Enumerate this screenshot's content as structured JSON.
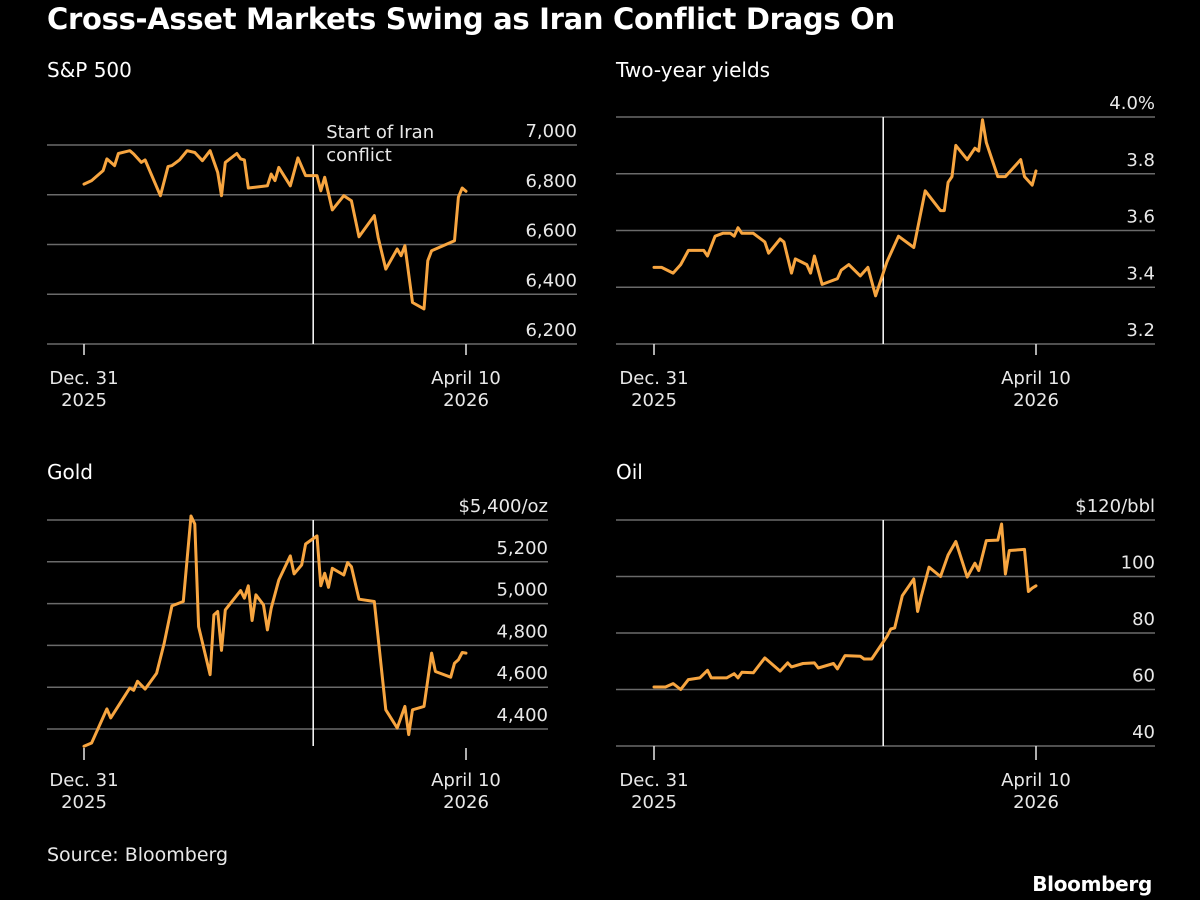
{
  "title": "Cross-Asset Markets Swing as Iran Conflict Drags On",
  "source": "Source: Bloomberg",
  "logo": "Bloomberg",
  "colors": {
    "line": "#f7a540",
    "grid": "#6a6a6a",
    "marker": "#ffffff",
    "background": "#000000"
  },
  "chart_data": [
    {
      "type": "line",
      "title": "S&P 500",
      "annotation": [
        "Start of Iran",
        "conflict"
      ],
      "event_date": "2026-03-01",
      "ylim": [
        6200,
        7000
      ],
      "yticks": [
        7000,
        6800,
        6600,
        6400,
        6200
      ],
      "ytick_labels": [
        "7,000",
        "6,800",
        "6,600",
        "6,400",
        "6,200"
      ],
      "xlim": [
        "2025-12-31",
        "2026-04-10"
      ],
      "xticks": [
        {
          "date": "2025-12-31",
          "label": [
            "Dec. 31",
            "2025"
          ]
        },
        {
          "date": "2026-04-10",
          "label": [
            "April 10",
            "2026"
          ]
        }
      ],
      "grid": true,
      "series": [
        {
          "points": [
            [
              "2025-12-31",
              6843
            ],
            [
              "2026-01-02",
              6857
            ],
            [
              "2026-01-05",
              6897
            ],
            [
              "2026-01-06",
              6944
            ],
            [
              "2026-01-08",
              6917
            ],
            [
              "2026-01-09",
              6966
            ],
            [
              "2026-01-12",
              6977
            ],
            [
              "2026-01-13",
              6964
            ],
            [
              "2026-01-15",
              6930
            ],
            [
              "2026-01-16",
              6940
            ],
            [
              "2026-01-20",
              6796
            ],
            [
              "2026-01-22",
              6913
            ],
            [
              "2026-01-23",
              6917
            ],
            [
              "2026-01-25",
              6940
            ],
            [
              "2026-01-27",
              6977
            ],
            [
              "2026-01-29",
              6970
            ],
            [
              "2026-01-31",
              6937
            ],
            [
              "2026-02-02",
              6977
            ],
            [
              "2026-02-04",
              6890
            ],
            [
              "2026-02-05",
              6796
            ],
            [
              "2026-02-06",
              6930
            ],
            [
              "2026-02-09",
              6966
            ],
            [
              "2026-02-10",
              6944
            ],
            [
              "2026-02-11",
              6940
            ],
            [
              "2026-02-12",
              6827
            ],
            [
              "2026-02-17",
              6836
            ],
            [
              "2026-02-18",
              6883
            ],
            [
              "2026-02-19",
              6857
            ],
            [
              "2026-02-20",
              6910
            ],
            [
              "2026-02-23",
              6836
            ],
            [
              "2026-02-25",
              6948
            ],
            [
              "2026-02-27",
              6877
            ],
            [
              "2026-03-02",
              6877
            ],
            [
              "2026-03-03",
              6816
            ],
            [
              "2026-03-04",
              6870
            ],
            [
              "2026-03-06",
              6739
            ],
            [
              "2026-03-09",
              6796
            ],
            [
              "2026-03-11",
              6776
            ],
            [
              "2026-03-13",
              6631
            ],
            [
              "2026-03-17",
              6716
            ],
            [
              "2026-03-18",
              6629
            ],
            [
              "2026-03-20",
              6501
            ],
            [
              "2026-03-23",
              6582
            ],
            [
              "2026-03-24",
              6555
            ],
            [
              "2026-03-25",
              6595
            ],
            [
              "2026-03-27",
              6367
            ],
            [
              "2026-03-30",
              6341
            ],
            [
              "2026-03-31",
              6535
            ],
            [
              "2026-04-01",
              6575
            ],
            [
              "2026-04-07",
              6615
            ],
            [
              "2026-04-08",
              6790
            ],
            [
              "2026-04-09",
              6827
            ],
            [
              "2026-04-10",
              6814
            ]
          ]
        }
      ]
    },
    {
      "type": "line",
      "title": "Two-year yields",
      "event_date": "2026-03-01",
      "ylim": [
        3.2,
        4.0
      ],
      "yticks": [
        4.0,
        3.8,
        3.6,
        3.4,
        3.2
      ],
      "ytick_labels": [
        "4.0%",
        "3.8",
        "3.6",
        "3.4",
        "3.2"
      ],
      "xlim": [
        "2025-12-31",
        "2026-04-10"
      ],
      "xticks": [
        {
          "date": "2025-12-31",
          "label": [
            "Dec. 31",
            "2025"
          ]
        },
        {
          "date": "2026-04-10",
          "label": [
            "April 10",
            "2026"
          ]
        }
      ],
      "grid": true,
      "series": [
        {
          "points": [
            [
              "2025-12-31",
              3.47
            ],
            [
              "2026-01-02",
              3.47
            ],
            [
              "2026-01-05",
              3.45
            ],
            [
              "2026-01-07",
              3.48
            ],
            [
              "2026-01-09",
              3.53
            ],
            [
              "2026-01-13",
              3.53
            ],
            [
              "2026-01-14",
              3.51
            ],
            [
              "2026-01-16",
              3.58
            ],
            [
              "2026-01-18",
              3.59
            ],
            [
              "2026-01-20",
              3.59
            ],
            [
              "2026-01-21",
              3.58
            ],
            [
              "2026-01-22",
              3.61
            ],
            [
              "2026-01-23",
              3.59
            ],
            [
              "2026-01-26",
              3.59
            ],
            [
              "2026-01-27",
              3.58
            ],
            [
              "2026-01-29",
              3.56
            ],
            [
              "2026-01-30",
              3.52
            ],
            [
              "2026-02-02",
              3.57
            ],
            [
              "2026-02-03",
              3.56
            ],
            [
              "2026-02-05",
              3.45
            ],
            [
              "2026-02-06",
              3.5
            ],
            [
              "2026-02-09",
              3.48
            ],
            [
              "2026-02-10",
              3.45
            ],
            [
              "2026-02-11",
              3.51
            ],
            [
              "2026-02-13",
              3.41
            ],
            [
              "2026-02-17",
              3.43
            ],
            [
              "2026-02-18",
              3.46
            ],
            [
              "2026-02-20",
              3.48
            ],
            [
              "2026-02-23",
              3.44
            ],
            [
              "2026-02-25",
              3.47
            ],
            [
              "2026-02-27",
              3.37
            ],
            [
              "2026-03-02",
              3.49
            ],
            [
              "2026-03-05",
              3.58
            ],
            [
              "2026-03-09",
              3.54
            ],
            [
              "2026-03-12",
              3.74
            ],
            [
              "2026-03-16",
              3.67
            ],
            [
              "2026-03-17",
              3.67
            ],
            [
              "2026-03-18",
              3.77
            ],
            [
              "2026-03-19",
              3.79
            ],
            [
              "2026-03-20",
              3.9
            ],
            [
              "2026-03-23",
              3.85
            ],
            [
              "2026-03-25",
              3.89
            ],
            [
              "2026-03-26",
              3.88
            ],
            [
              "2026-03-27",
              3.99
            ],
            [
              "2026-03-28",
              3.91
            ],
            [
              "2026-03-31",
              3.79
            ],
            [
              "2026-04-02",
              3.79
            ],
            [
              "2026-04-06",
              3.85
            ],
            [
              "2026-04-07",
              3.79
            ],
            [
              "2026-04-09",
              3.76
            ],
            [
              "2026-04-10",
              3.81
            ]
          ]
        }
      ]
    },
    {
      "type": "line",
      "title": "Gold",
      "event_date": "2026-03-01",
      "ylim": [
        4400,
        5400
      ],
      "yticks": [
        5400,
        5200,
        5000,
        4800,
        4600,
        4400
      ],
      "ytick_labels": [
        "$5,400/oz",
        "5,200",
        "5,000",
        "4,800",
        "4,600",
        "4,400"
      ],
      "xlim": [
        "2025-12-31",
        "2026-04-10"
      ],
      "xticks": [
        {
          "date": "2025-12-31",
          "label": [
            "Dec. 31",
            "2025"
          ]
        },
        {
          "date": "2026-04-10",
          "label": [
            "April 10",
            "2026"
          ]
        }
      ],
      "grid": true,
      "series": [
        {
          "points": [
            [
              "2025-12-31",
              4317
            ],
            [
              "2026-01-02",
              4333
            ],
            [
              "2026-01-06",
              4496
            ],
            [
              "2026-01-07",
              4453
            ],
            [
              "2026-01-12",
              4596
            ],
            [
              "2026-01-13",
              4585
            ],
            [
              "2026-01-14",
              4628
            ],
            [
              "2026-01-16",
              4591
            ],
            [
              "2026-01-19",
              4667
            ],
            [
              "2026-01-21",
              4811
            ],
            [
              "2026-01-23",
              4989
            ],
            [
              "2026-01-26",
              5010
            ],
            [
              "2026-01-28",
              5419
            ],
            [
              "2026-01-29",
              5381
            ],
            [
              "2026-01-30",
              4890
            ],
            [
              "2026-02-02",
              4660
            ],
            [
              "2026-02-03",
              4946
            ],
            [
              "2026-02-04",
              4962
            ],
            [
              "2026-02-05",
              4776
            ],
            [
              "2026-02-06",
              4970
            ],
            [
              "2026-02-10",
              5062
            ],
            [
              "2026-02-11",
              5026
            ],
            [
              "2026-02-12",
              5085
            ],
            [
              "2026-02-13",
              4919
            ],
            [
              "2026-02-14",
              5042
            ],
            [
              "2026-02-16",
              4994
            ],
            [
              "2026-02-17",
              4874
            ],
            [
              "2026-02-18",
              4978
            ],
            [
              "2026-02-20",
              5113
            ],
            [
              "2026-02-23",
              5228
            ],
            [
              "2026-02-24",
              5142
            ],
            [
              "2026-02-26",
              5185
            ],
            [
              "2026-02-27",
              5285
            ],
            [
              "2026-03-02",
              5324
            ],
            [
              "2026-03-03",
              5085
            ],
            [
              "2026-03-04",
              5145
            ],
            [
              "2026-03-05",
              5078
            ],
            [
              "2026-03-06",
              5169
            ],
            [
              "2026-03-09",
              5137
            ],
            [
              "2026-03-10",
              5196
            ],
            [
              "2026-03-11",
              5177
            ],
            [
              "2026-03-13",
              5021
            ],
            [
              "2026-03-17",
              5010
            ],
            [
              "2026-03-20",
              4492
            ],
            [
              "2026-03-23",
              4405
            ],
            [
              "2026-03-25",
              4508
            ],
            [
              "2026-03-26",
              4373
            ],
            [
              "2026-03-27",
              4492
            ],
            [
              "2026-03-30",
              4508
            ],
            [
              "2026-04-01",
              4763
            ],
            [
              "2026-04-02",
              4675
            ],
            [
              "2026-04-06",
              4648
            ],
            [
              "2026-04-07",
              4715
            ],
            [
              "2026-04-08",
              4731
            ],
            [
              "2026-04-09",
              4766
            ],
            [
              "2026-04-10",
              4763
            ]
          ]
        }
      ]
    },
    {
      "type": "line",
      "title": "Oil",
      "event_date": "2026-03-01",
      "ylim": [
        40,
        120
      ],
      "yticks": [
        120,
        100,
        80,
        60,
        40
      ],
      "ytick_labels": [
        "$120/bbl",
        "100",
        "80",
        "60",
        "40"
      ],
      "xlim": [
        "2025-12-31",
        "2026-04-10"
      ],
      "xticks": [
        {
          "date": "2025-12-31",
          "label": [
            "Dec. 31",
            "2025"
          ]
        },
        {
          "date": "2026-04-10",
          "label": [
            "April 10",
            "2026"
          ]
        }
      ],
      "grid": true,
      "series": [
        {
          "points": [
            [
              "2025-12-31",
              60.9
            ],
            [
              "2026-01-03",
              60.9
            ],
            [
              "2026-01-05",
              62.1
            ],
            [
              "2026-01-07",
              60.0
            ],
            [
              "2026-01-09",
              63.5
            ],
            [
              "2026-01-12",
              64.1
            ],
            [
              "2026-01-14",
              66.8
            ],
            [
              "2026-01-15",
              64.1
            ],
            [
              "2026-01-19",
              64.1
            ],
            [
              "2026-01-21",
              65.6
            ],
            [
              "2026-01-22",
              64.1
            ],
            [
              "2026-01-23",
              66.1
            ],
            [
              "2026-01-26",
              65.9
            ],
            [
              "2026-01-29",
              71.2
            ],
            [
              "2026-02-02",
              66.5
            ],
            [
              "2026-02-04",
              69.4
            ],
            [
              "2026-02-05",
              68.0
            ],
            [
              "2026-02-08",
              69.2
            ],
            [
              "2026-02-11",
              69.4
            ],
            [
              "2026-02-12",
              67.6
            ],
            [
              "2026-02-16",
              69.2
            ],
            [
              "2026-02-17",
              67.3
            ],
            [
              "2026-02-19",
              72.0
            ],
            [
              "2026-02-23",
              71.8
            ],
            [
              "2026-02-24",
              70.8
            ],
            [
              "2026-02-26",
              70.8
            ],
            [
              "2026-03-02",
              78.8
            ],
            [
              "2026-03-03",
              81.4
            ],
            [
              "2026-03-04",
              81.8
            ],
            [
              "2026-03-06",
              93.2
            ],
            [
              "2026-03-09",
              99.1
            ],
            [
              "2026-03-10",
              87.6
            ],
            [
              "2026-03-11",
              93.2
            ],
            [
              "2026-03-13",
              103.3
            ],
            [
              "2026-03-16",
              100.0
            ],
            [
              "2026-03-18",
              107.6
            ],
            [
              "2026-03-20",
              112.4
            ],
            [
              "2026-03-23",
              99.8
            ],
            [
              "2026-03-25",
              104.7
            ],
            [
              "2026-03-26",
              102.1
            ],
            [
              "2026-03-28",
              112.7
            ],
            [
              "2026-03-31",
              112.9
            ],
            [
              "2026-04-01",
              118.6
            ],
            [
              "2026-04-02",
              100.9
            ],
            [
              "2026-04-03",
              109.2
            ],
            [
              "2026-04-07",
              109.6
            ],
            [
              "2026-04-08",
              94.7
            ],
            [
              "2026-04-09",
              95.9
            ],
            [
              "2026-04-10",
              96.7
            ]
          ]
        }
      ]
    }
  ]
}
